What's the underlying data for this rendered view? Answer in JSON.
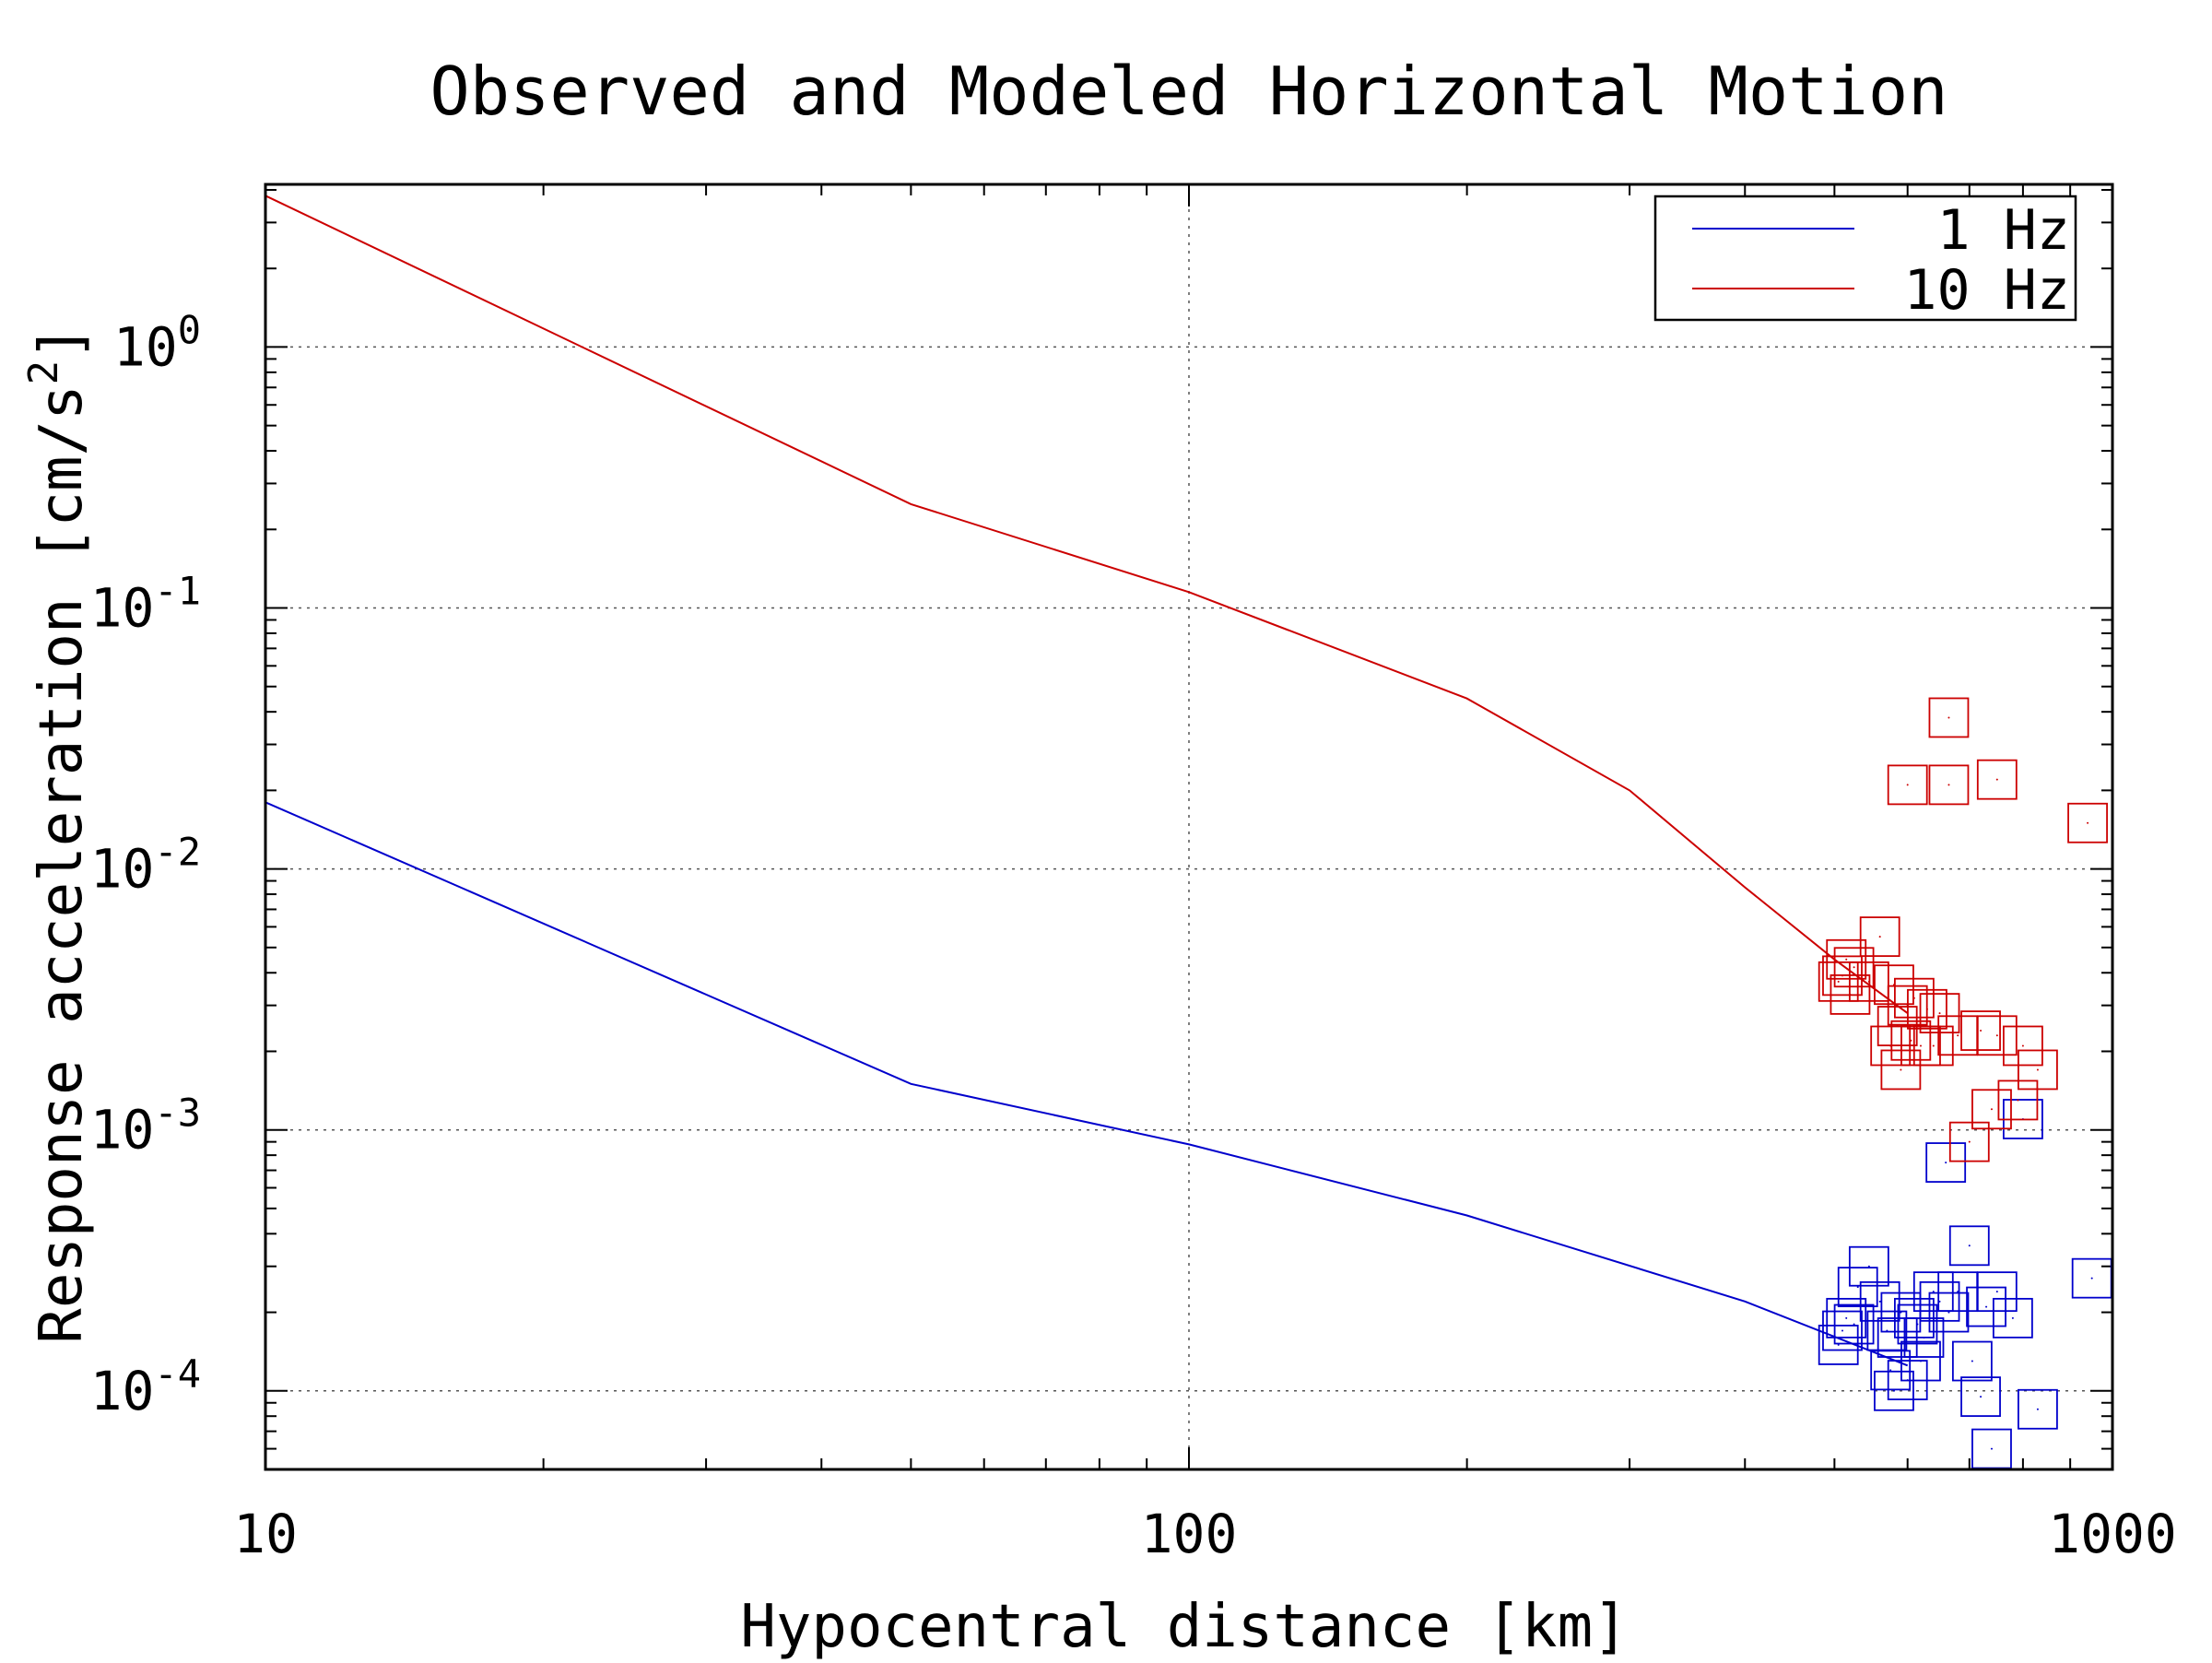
{
  "chart_data": {
    "type": "line",
    "title": "Observed and Modeled Horizontal Motion",
    "xlabel": "Hypocentral distance [km]",
    "ylabel_base": "Response acceleration [cm/s",
    "ylabel_sup": "2",
    "ylabel_end": "]",
    "xscale": "log",
    "yscale": "log",
    "xlim": [
      10,
      1000
    ],
    "ylim": [
      5e-05,
      4.2
    ],
    "grid": true,
    "legend_position": "top-right",
    "x_ticks": [
      {
        "value": 10,
        "label": "10"
      },
      {
        "value": 100,
        "label": "100"
      },
      {
        "value": 1000,
        "label": "1000"
      }
    ],
    "y_ticks": [
      {
        "value": 1,
        "base": "10",
        "exp": "0"
      },
      {
        "value": 0.1,
        "base": "10",
        "exp": "-1"
      },
      {
        "value": 0.01,
        "base": "10",
        "exp": "-2"
      },
      {
        "value": 0.001,
        "base": "10",
        "exp": "-3"
      },
      {
        "value": 0.0001,
        "base": "10",
        "exp": "-4"
      }
    ],
    "series": [
      {
        "name": "1 Hz",
        "color": "#0000cc",
        "model_x": [
          10,
          50,
          100,
          200,
          400,
          600
        ],
        "model_y": [
          0.018,
          0.0015,
          0.00088,
          0.00047,
          0.00022,
          0.000125
        ],
        "observed_x": [
          505,
          510,
          515,
          525,
          530,
          545,
          560,
          570,
          575,
          580,
          585,
          590,
          600,
          610,
          615,
          620,
          625,
          640,
          650,
          660,
          665,
          680,
          700,
          705,
          720,
          730,
          740,
          750,
          780,
          800,
          830,
          950
        ],
        "observed_y": [
          0.00015,
          0.00017,
          0.00019,
          0.00018,
          0.00025,
          0.0003,
          0.00022,
          0.00017,
          0.00012,
          0.0001,
          0.00016,
          0.0002,
          0.00011,
          0.00019,
          0.00018,
          0.00013,
          0.00016,
          0.00024,
          0.00022,
          0.00075,
          0.0002,
          0.00024,
          0.00036,
          0.00013,
          9.5e-05,
          0.00021,
          6e-05,
          0.00024,
          0.00019,
          0.0011,
          8.5e-05,
          0.00027
        ]
      },
      {
        "name": "10 Hz",
        "color": "#cc0000",
        "model_x": [
          10,
          50,
          100,
          200,
          300,
          400,
          500,
          600
        ],
        "model_y": [
          3.8,
          0.25,
          0.115,
          0.045,
          0.02,
          0.0085,
          0.0045,
          0.0028
        ],
        "observed_x": [
          505,
          510,
          515,
          520,
          525,
          545,
          560,
          575,
          580,
          585,
          590,
          600,
          605,
          610,
          620,
          630,
          640,
          650,
          665,
          680,
          700,
          720,
          740,
          750,
          790,
          800,
          830,
          940
        ],
        "observed_y": [
          0.0037,
          0.0039,
          0.0045,
          0.0033,
          0.0042,
          0.0037,
          0.0055,
          0.0021,
          0.0036,
          0.0025,
          0.0017,
          0.003,
          0.0022,
          0.0032,
          0.0021,
          0.0029,
          0.0021,
          0.0028,
          0.038,
          0.0023,
          0.0009,
          0.0024,
          0.0012,
          0.0023,
          0.0013,
          0.0021,
          0.0017,
          0.015
        ]
      },
      {
        "name": "",
        "color": "#cc0000",
        "model_x": [],
        "model_y": [],
        "observed_x": [
          600,
          665,
          750
        ],
        "observed_y": [
          0.021,
          0.021,
          0.022
        ]
      }
    ]
  }
}
